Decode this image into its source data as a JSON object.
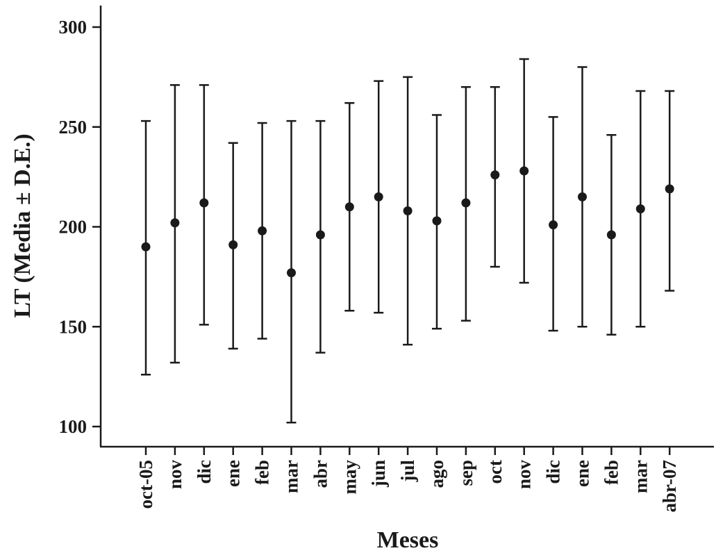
{
  "chart_data": {
    "type": "scatter",
    "title": "",
    "xlabel": "Meses",
    "ylabel": "LT (Media ± D.E.)",
    "ylim": [
      88,
      312
    ],
    "yticks": [
      100,
      150,
      200,
      250,
      300
    ],
    "ytick_labels": [
      "100",
      "150",
      "200",
      "250",
      "300"
    ],
    "grid": false,
    "legend": "none",
    "marker_color": "#1a1a1a",
    "categories": [
      "oct-05",
      "nov",
      "dic",
      "ene",
      "feb",
      "mar",
      "abr",
      "may",
      "jun",
      "jul",
      "ago",
      "sep",
      "oct",
      "nov",
      "dic",
      "ene",
      "feb",
      "mar",
      "abr-07"
    ],
    "series": [
      {
        "mean": [
          190,
          202,
          212,
          191,
          198,
          177,
          196,
          210,
          215,
          208,
          203,
          212,
          226,
          228,
          201,
          215,
          196,
          209,
          219
        ],
        "lower": [
          126,
          132,
          151,
          139,
          144,
          102,
          137,
          158,
          157,
          141,
          149,
          153,
          180,
          172,
          148,
          150,
          146,
          150,
          168
        ],
        "upper": [
          253,
          271,
          271,
          242,
          252,
          253,
          253,
          262,
          273,
          275,
          256,
          270,
          270,
          284,
          255,
          280,
          246,
          268,
          268
        ]
      }
    ]
  }
}
